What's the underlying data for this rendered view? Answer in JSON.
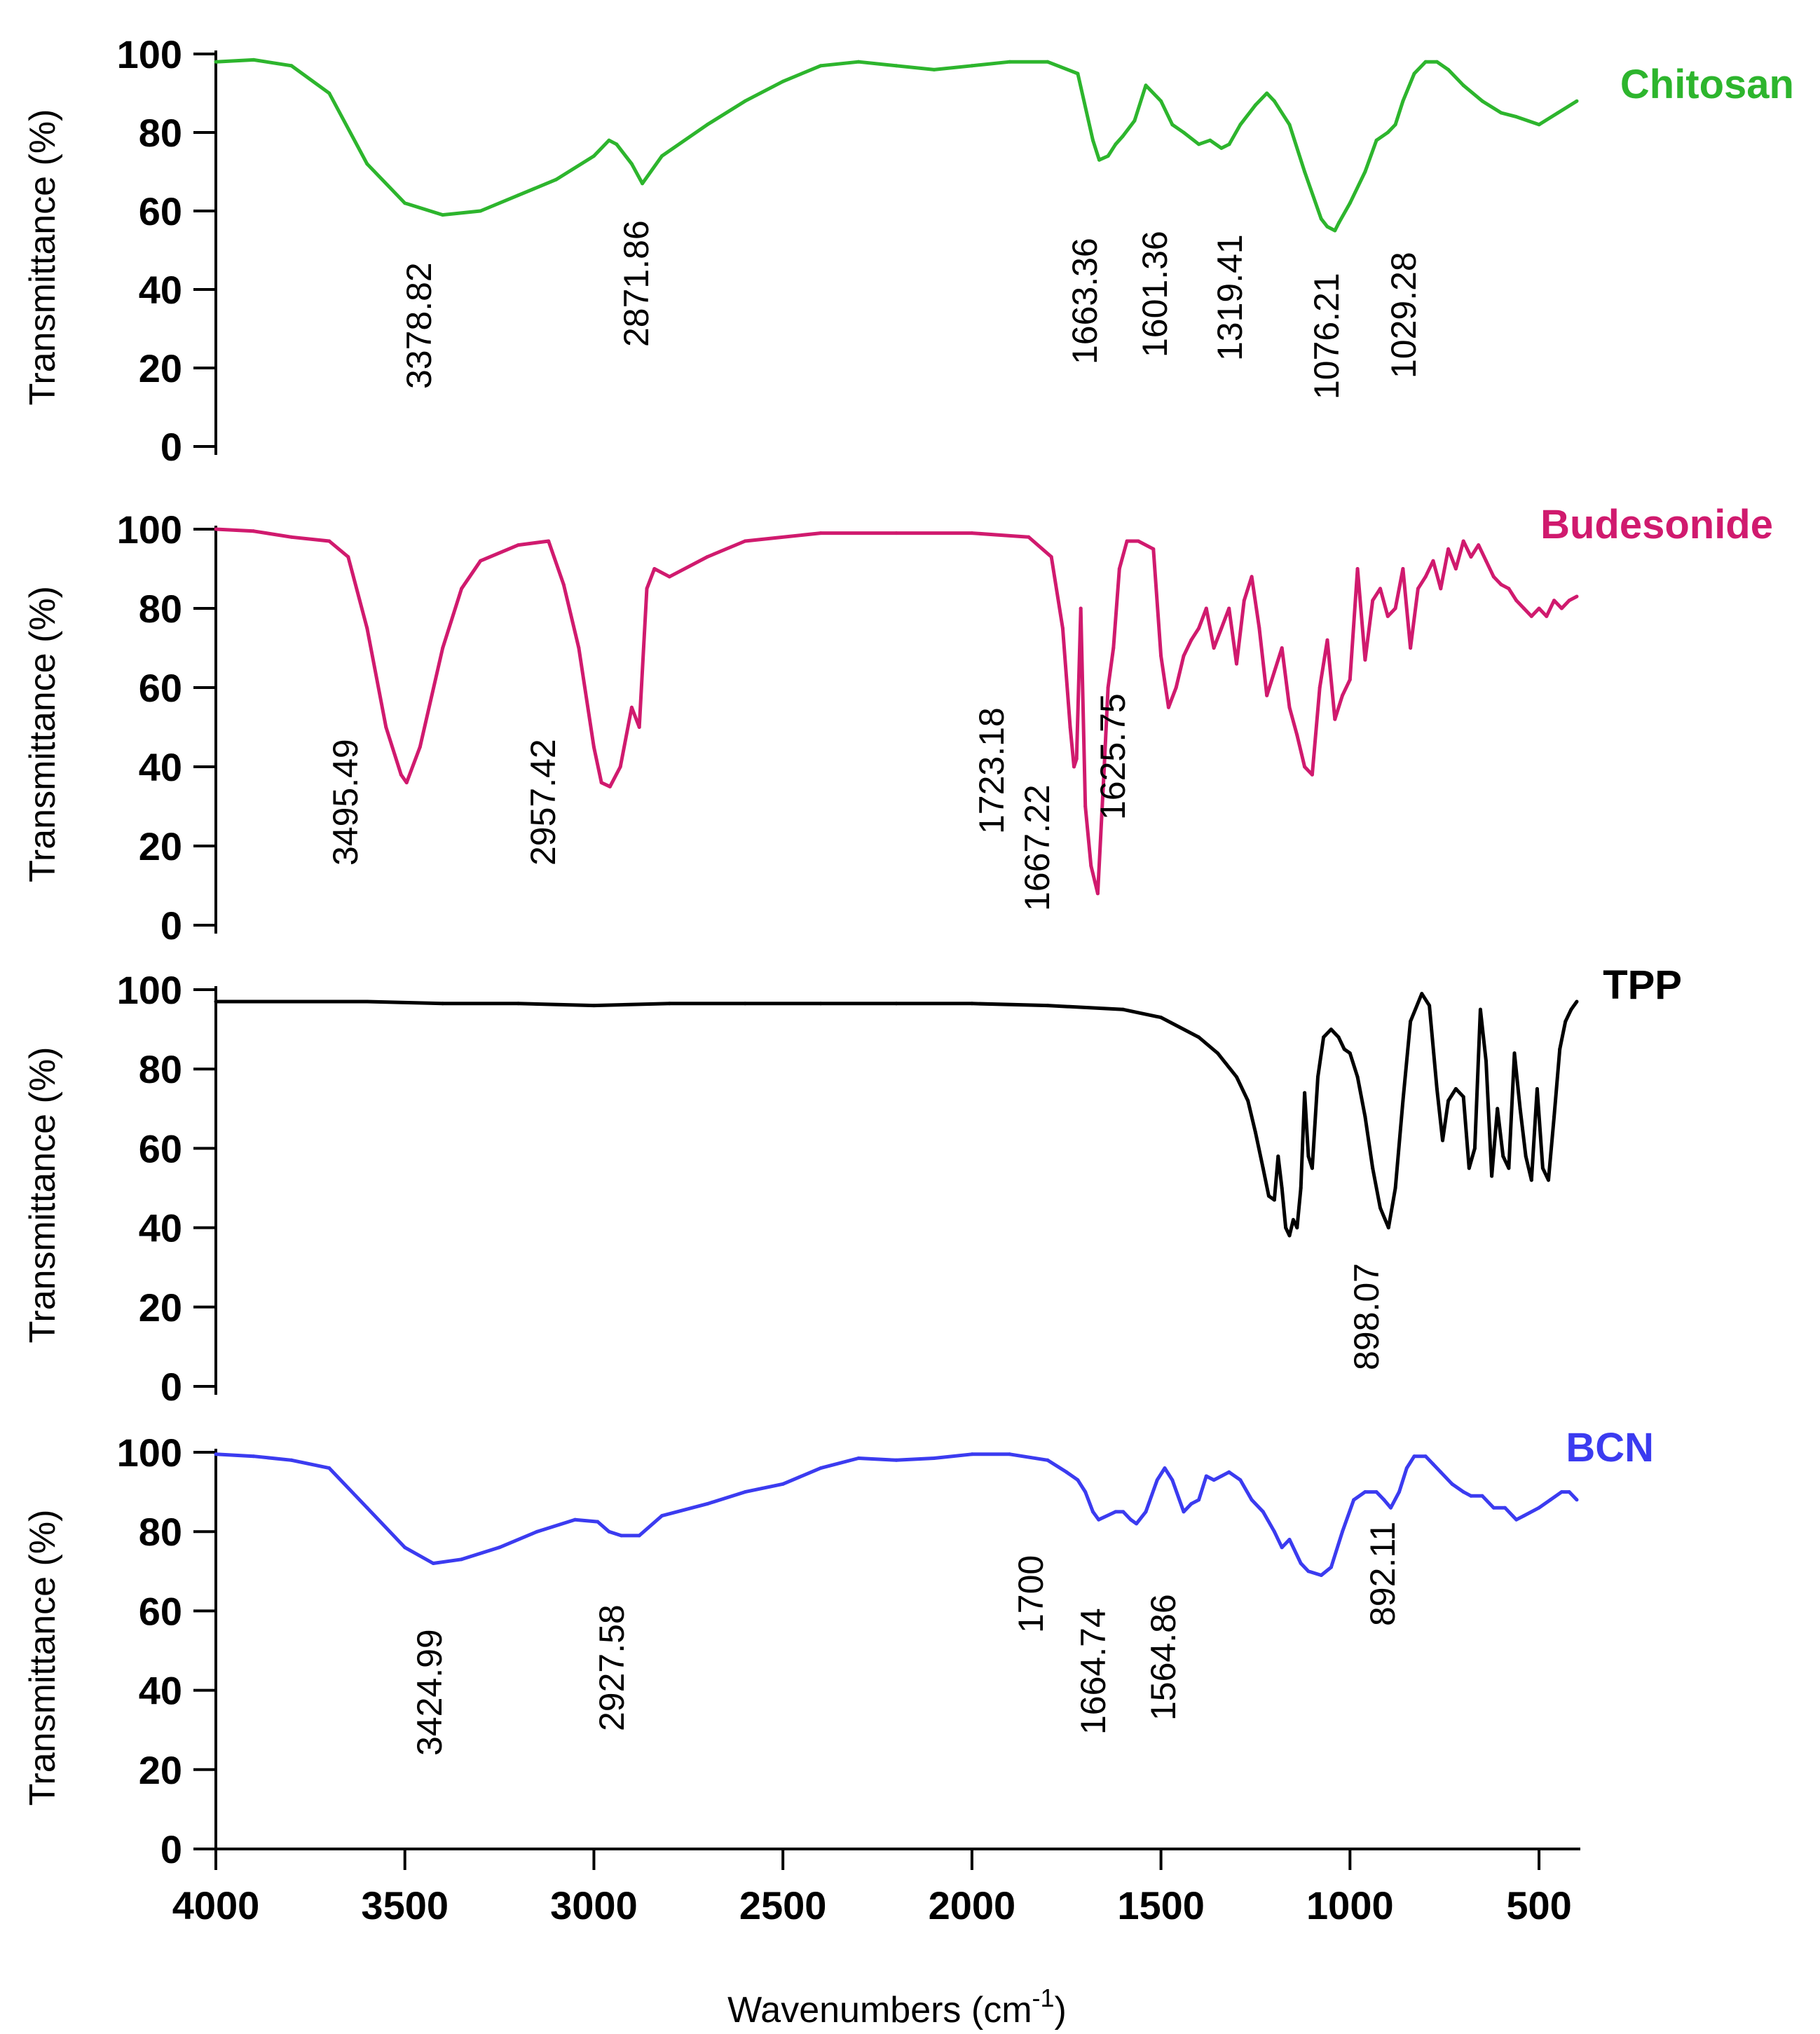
{
  "chart_data": [
    {
      "type": "line",
      "series_name": "Chitosan",
      "color": "#2db52d",
      "ylabel": "Transmittance (%)",
      "xlim": [
        4000,
        400
      ],
      "ylim": [
        0,
        100
      ],
      "yticks": [
        "0",
        "20",
        "40",
        "60",
        "80",
        "100"
      ],
      "x": [
        4000,
        3900,
        3800,
        3700,
        3600,
        3500,
        3400,
        3300,
        3200,
        3100,
        3000,
        2960,
        2940,
        2900,
        2871.86,
        2820,
        2700,
        2600,
        2500,
        2400,
        2300,
        2200,
        2100,
        2000,
        1900,
        1800,
        1720,
        1680,
        1663.36,
        1640,
        1620,
        1601.36,
        1570,
        1540,
        1500,
        1470,
        1440,
        1400,
        1370,
        1340,
        1319.41,
        1290,
        1250,
        1220,
        1200,
        1160,
        1120,
        1076.21,
        1060,
        1040,
        1029.28,
        1000,
        960,
        930,
        900,
        880,
        860,
        830,
        800,
        770,
        740,
        700,
        650,
        600,
        560,
        500,
        450,
        400
      ],
      "values": [
        98,
        98.5,
        97,
        90,
        72,
        62,
        59,
        60,
        64,
        68,
        74,
        78,
        77,
        72,
        67,
        74,
        82,
        88,
        93,
        97,
        98,
        97,
        96,
        97,
        98,
        98,
        95,
        78,
        73,
        74,
        77,
        79,
        83,
        92,
        88,
        82,
        80,
        77,
        78,
        76,
        77,
        82,
        87,
        90,
        88,
        82,
        70,
        58,
        56,
        55,
        57,
        62,
        70,
        78,
        80,
        82,
        88,
        95,
        98,
        98,
        96,
        92,
        88,
        85,
        84,
        82,
        85,
        88
      ],
      "peak_labels": [
        "3378.82",
        "2871.86",
        "1663.36",
        "1601.36",
        "1319.41",
        "1076.21",
        "1029.28"
      ],
      "peak_positions": [
        3378.82,
        2871.86,
        1663.36,
        1601.36,
        1319.41,
        1076.21,
        1029.28
      ]
    },
    {
      "type": "line",
      "series_name": "Budesonide",
      "color": "#d01a6e",
      "ylabel": "Transmittance (%)",
      "xlim": [
        4000,
        400
      ],
      "ylim": [
        0,
        100
      ],
      "yticks": [
        "0",
        "20",
        "40",
        "60",
        "80",
        "100"
      ],
      "x": [
        4000,
        3900,
        3800,
        3700,
        3650,
        3600,
        3550,
        3510,
        3495.49,
        3460,
        3400,
        3350,
        3300,
        3200,
        3120,
        3080,
        3040,
        3000,
        2980,
        2957.42,
        2930,
        2900,
        2880,
        2860,
        2840,
        2800,
        2700,
        2600,
        2400,
        2200,
        2000,
        1850,
        1790,
        1760,
        1740,
        1730,
        1723.18,
        1712,
        1700,
        1685,
        1667.22,
        1650,
        1640,
        1625.75,
        1610,
        1590,
        1560,
        1520,
        1500,
        1480,
        1460,
        1440,
        1420,
        1400,
        1380,
        1360,
        1340,
        1320,
        1300,
        1280,
        1260,
        1240,
        1220,
        1200,
        1180,
        1160,
        1140,
        1120,
        1100,
        1080,
        1060,
        1040,
        1020,
        1000,
        980,
        960,
        940,
        920,
        900,
        880,
        860,
        840,
        820,
        800,
        780,
        760,
        740,
        720,
        700,
        680,
        660,
        640,
        620,
        600,
        580,
        560,
        540,
        520,
        500,
        480,
        460,
        440,
        420,
        400
      ],
      "values": [
        100,
        99.5,
        98,
        97,
        93,
        75,
        50,
        38,
        36,
        45,
        70,
        85,
        92,
        96,
        97,
        86,
        70,
        45,
        36,
        35,
        40,
        55,
        50,
        85,
        90,
        88,
        93,
        97,
        99,
        99,
        99,
        98,
        93,
        75,
        50,
        40,
        42,
        80,
        30,
        15,
        8,
        40,
        60,
        70,
        90,
        97,
        97,
        95,
        68,
        55,
        60,
        68,
        72,
        75,
        80,
        70,
        75,
        80,
        66,
        82,
        88,
        75,
        58,
        64,
        70,
        55,
        48,
        40,
        38,
        60,
        72,
        52,
        58,
        62,
        90,
        67,
        82,
        85,
        78,
        80,
        90,
        70,
        85,
        88,
        92,
        85,
        95,
        90,
        97,
        93,
        96,
        92,
        88,
        86,
        85,
        82,
        80,
        78,
        80,
        78,
        82,
        80,
        82,
        83
      ],
      "peak_labels": [
        "3495.49",
        "2957.42",
        "1723.18",
        "1667.22",
        "1625.75"
      ],
      "peak_positions": [
        3495.49,
        2957.42,
        1723.18,
        1667.22,
        1625.75
      ]
    },
    {
      "type": "line",
      "series_name": "TPP",
      "color": "#000000",
      "ylabel": "Transmittance (%)",
      "xlim": [
        4000,
        400
      ],
      "ylim": [
        0,
        100
      ],
      "yticks": [
        "0",
        "20",
        "40",
        "60",
        "80",
        "100"
      ],
      "x": [
        4000,
        3800,
        3600,
        3400,
        3200,
        3000,
        2800,
        2600,
        2400,
        2200,
        2000,
        1800,
        1600,
        1500,
        1400,
        1350,
        1300,
        1270,
        1250,
        1230,
        1215,
        1200,
        1190,
        1180,
        1170,
        1160,
        1150,
        1140,
        1130,
        1120,
        1110,
        1100,
        1085,
        1070,
        1050,
        1030,
        1015,
        1000,
        980,
        960,
        940,
        920,
        898.07,
        880,
        860,
        840,
        810,
        790,
        770,
        755,
        740,
        720,
        700,
        685,
        670,
        655,
        640,
        625,
        610,
        595,
        580,
        565,
        550,
        535,
        520,
        505,
        490,
        475,
        460,
        445,
        430,
        415,
        400
      ],
      "values": [
        97,
        97,
        97,
        96.5,
        96.5,
        96,
        96.5,
        96.5,
        96.5,
        96.5,
        96.5,
        96,
        95,
        93,
        88,
        84,
        78,
        72,
        64,
        55,
        48,
        47,
        58,
        50,
        40,
        38,
        42,
        40,
        50,
        74,
        58,
        55,
        78,
        88,
        90,
        88,
        85,
        84,
        78,
        68,
        55,
        45,
        40,
        50,
        72,
        92,
        99,
        96,
        75,
        62,
        72,
        75,
        73,
        55,
        60,
        95,
        82,
        53,
        70,
        58,
        55,
        84,
        70,
        58,
        52,
        75,
        55,
        52,
        68,
        85,
        92,
        95,
        97
      ],
      "peak_labels": [
        "898.07"
      ],
      "peak_positions": [
        898.07
      ]
    },
    {
      "type": "line",
      "series_name": "BCN",
      "color": "#3b3bf0",
      "ylabel": "Transmittance (%)",
      "xlabel": "Wavenumbers (cm",
      "xlabel_sup": "-1",
      "xlabel_end": ")",
      "xlim": [
        4000,
        400
      ],
      "ylim": [
        0,
        100
      ],
      "xtick_values": [
        4000,
        3500,
        3000,
        2500,
        2000,
        1500,
        1000,
        500
      ],
      "xtick_labels": [
        "4000",
        "3500",
        "3000",
        "2500",
        "2000",
        "1500",
        "1000",
        "500"
      ],
      "yticks": [
        "0",
        "20",
        "40",
        "60",
        "80",
        "100"
      ],
      "x": [
        4000,
        3900,
        3800,
        3700,
        3600,
        3500,
        3424.99,
        3350,
        3250,
        3150,
        3050,
        2990,
        2960,
        2927.58,
        2880,
        2820,
        2700,
        2600,
        2500,
        2400,
        2300,
        2200,
        2100,
        2000,
        1900,
        1800,
        1750,
        1720,
        1700,
        1680,
        1664.74,
        1620,
        1600,
        1580,
        1564.86,
        1540,
        1510,
        1490,
        1470,
        1440,
        1420,
        1400,
        1380,
        1360,
        1340,
        1320,
        1290,
        1260,
        1230,
        1200,
        1180,
        1160,
        1130,
        1110,
        1076,
        1050,
        1020,
        990,
        960,
        930,
        910,
        892.11,
        870,
        850,
        830,
        800,
        780,
        760,
        730,
        700,
        680,
        650,
        620,
        590,
        560,
        540,
        500,
        470,
        440,
        420,
        400
      ],
      "values": [
        99.5,
        99,
        98,
        96,
        86,
        76,
        72,
        73,
        76,
        80,
        83,
        82.5,
        80,
        79,
        79,
        84,
        87,
        90,
        92,
        96,
        98.5,
        98,
        98.5,
        99.5,
        99.5,
        98,
        95,
        93,
        90,
        85,
        83,
        85,
        85,
        83,
        82,
        85,
        93,
        96,
        93,
        85,
        87,
        88,
        94,
        93,
        94,
        95,
        93,
        88,
        85,
        80,
        76,
        78,
        72,
        70,
        69,
        71,
        80,
        88,
        90,
        90,
        88,
        86,
        90,
        96,
        99,
        99,
        97,
        95,
        92,
        90,
        89,
        89,
        86,
        86,
        83,
        84,
        86,
        88,
        90,
        90,
        88
      ],
      "peak_labels": [
        "3424.99",
        "2927.58",
        "1700",
        "1664.74",
        "1564.86",
        "892.11"
      ],
      "peak_positions": [
        3424.99,
        2927.58,
        1700,
        1664.74,
        1564.86,
        892.11
      ]
    }
  ]
}
